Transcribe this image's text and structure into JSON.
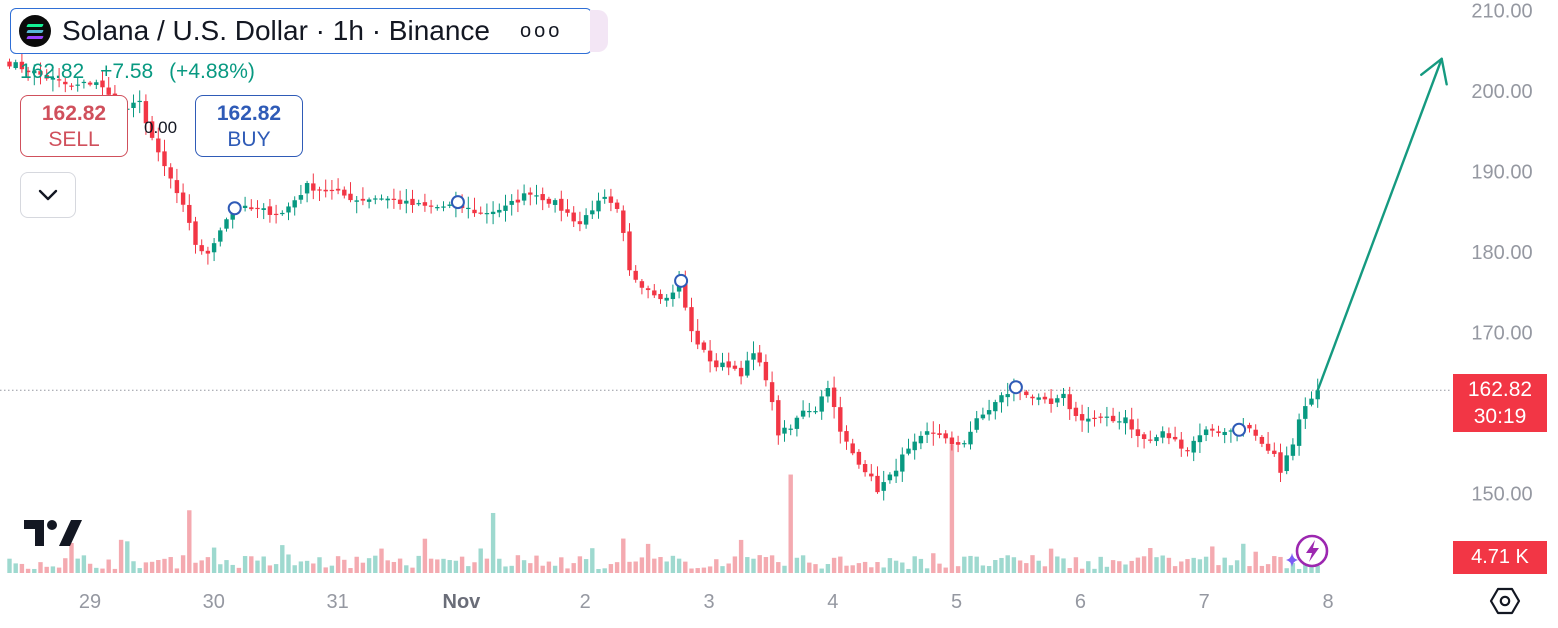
{
  "header": {
    "title": "Solana / U.S. Dollar · 1h · Binance",
    "menu_glyph": "ooo",
    "symbol_icon": "solana-logo-icon"
  },
  "quote": {
    "price": "162.82",
    "change": "+7.58",
    "change_percent": "(+4.88%)"
  },
  "trade": {
    "sell_price": "162.82",
    "sell_label": "SELL",
    "buy_price": "162.82",
    "buy_label": "BUY",
    "spread": "0.00"
  },
  "price_tag": {
    "price": "162.82",
    "countdown": "30:19"
  },
  "volume_tag": {
    "value": "4.71 K"
  },
  "colors": {
    "up": "#089981",
    "down": "#f23645",
    "up_vol": "#9ed9cf",
    "down_vol": "#f4aab0",
    "arrow": "#159a80",
    "axis_text": "#9598a1"
  },
  "chart_data": {
    "type": "candlestick",
    "symbol": "SOL/USD",
    "interval": "1h",
    "exchange": "Binance",
    "y_axis": {
      "ticks": [
        "150.00",
        "160.00",
        "170.00",
        "180.00",
        "190.00",
        "200.00",
        "210.00"
      ],
      "ylim": [
        145.5,
        210.5
      ]
    },
    "x_axis": {
      "ticks": [
        "29",
        "30",
        "31",
        "Nov",
        "2",
        "3",
        "4",
        "5",
        "6",
        "7",
        "8"
      ]
    },
    "last_price": 162.82,
    "close_path": [
      [
        0,
        203.5
      ],
      [
        5,
        202.0
      ],
      [
        10,
        200.5
      ],
      [
        14,
        201.2
      ],
      [
        18,
        197.5
      ],
      [
        21,
        198.5
      ],
      [
        24,
        192.0
      ],
      [
        26,
        189.0
      ],
      [
        28,
        185.5
      ],
      [
        30,
        181.0
      ],
      [
        32,
        179.5
      ],
      [
        34,
        183.0
      ],
      [
        36,
        185.5
      ],
      [
        40,
        185.2
      ],
      [
        44,
        184.8
      ],
      [
        48,
        188.2
      ],
      [
        52,
        187.5
      ],
      [
        56,
        186.5
      ],
      [
        60,
        186.8
      ],
      [
        64,
        186.0
      ],
      [
        68,
        185.5
      ],
      [
        72,
        185.8
      ],
      [
        76,
        184.8
      ],
      [
        80,
        185.5
      ],
      [
        84,
        187.5
      ],
      [
        88,
        186.0
      ],
      [
        92,
        183.5
      ],
      [
        94,
        185.5
      ],
      [
        96,
        186.5
      ],
      [
        98,
        185.0
      ],
      [
        99,
        182.0
      ],
      [
        100,
        177.5
      ],
      [
        102,
        176.0
      ],
      [
        104,
        175.0
      ],
      [
        106,
        174.2
      ],
      [
        108,
        176.2
      ],
      [
        110,
        170.0
      ],
      [
        112,
        167.5
      ],
      [
        114,
        165.8
      ],
      [
        116,
        166.0
      ],
      [
        118,
        165.0
      ],
      [
        120,
        167.3
      ],
      [
        122,
        164.5
      ],
      [
        124,
        157.5
      ],
      [
        126,
        158.0
      ],
      [
        128,
        160.5
      ],
      [
        130,
        160.5
      ],
      [
        132,
        163.5
      ],
      [
        134,
        157.5
      ],
      [
        136,
        155.0
      ],
      [
        138,
        153.0
      ],
      [
        140,
        150.5
      ],
      [
        142,
        152.0
      ],
      [
        144,
        154.5
      ],
      [
        146,
        156.0
      ],
      [
        148,
        157.5
      ],
      [
        150,
        157.5
      ],
      [
        152,
        155.8
      ],
      [
        154,
        156.5
      ],
      [
        156,
        159.0
      ],
      [
        158,
        160.5
      ],
      [
        160,
        162.0
      ],
      [
        162,
        163.0
      ],
      [
        164,
        162.5
      ],
      [
        166,
        161.5
      ],
      [
        168,
        161.0
      ],
      [
        170,
        162.0
      ],
      [
        172,
        159.5
      ],
      [
        174,
        159.3
      ],
      [
        176,
        159.3
      ],
      [
        178,
        159.0
      ],
      [
        180,
        159.5
      ],
      [
        182,
        157.0
      ],
      [
        184,
        156.5
      ],
      [
        186,
        157.5
      ],
      [
        188,
        156.5
      ],
      [
        190,
        155.5
      ],
      [
        192,
        157.5
      ],
      [
        194,
        158.0
      ],
      [
        196,
        157.5
      ],
      [
        198,
        158.3
      ],
      [
        200,
        157.8
      ],
      [
        202,
        155.8
      ],
      [
        204,
        154.5
      ],
      [
        205,
        153.0
      ],
      [
        206,
        154.5
      ],
      [
        207,
        156.0
      ],
      [
        208,
        159.0
      ],
      [
        209,
        160.5
      ],
      [
        210,
        162.2
      ],
      [
        211,
        162.82
      ]
    ],
    "event_markers_bar_index": [
      36,
      72,
      108,
      162,
      198
    ],
    "projection_arrow": {
      "from": [
        211,
        162.82
      ],
      "to": [
        231,
        204.0
      ]
    },
    "volume": {
      "last_value": "4.71 K",
      "spike_bars": [
        29,
        78,
        126,
        152
      ]
    }
  }
}
